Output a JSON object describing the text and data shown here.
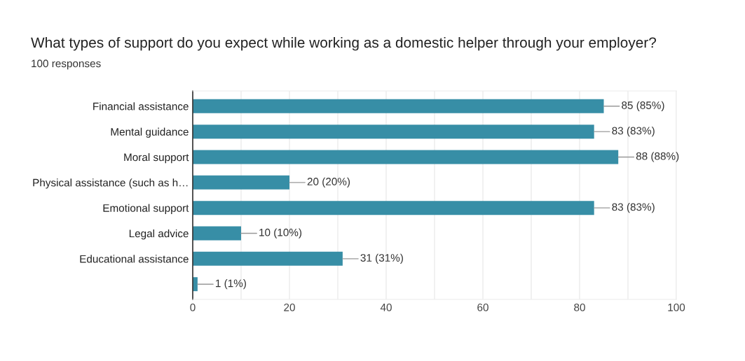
{
  "chart_data": {
    "type": "bar",
    "orientation": "horizontal",
    "title": "What types of support do you expect while working as a domestic helper through your employer?",
    "subtitle": "100 responses",
    "categories": [
      "Financial assistance",
      "Mental guidance",
      "Moral support",
      "Physical assistance (such as h…",
      "Emotional support",
      "Legal advice",
      "Educational assistance",
      null
    ],
    "values": [
      85,
      83,
      88,
      20,
      83,
      10,
      31,
      1
    ],
    "value_labels": [
      "85 (85%)",
      "83 (83%)",
      "88 (88%)",
      "20 (20%)",
      "83 (83%)",
      "10 (10%)",
      "31 (31%)",
      "1 (1%)"
    ],
    "color": "#378ea6",
    "xlim": [
      0,
      100
    ],
    "xticks": [
      0,
      {
        "value": 10,
        "label": null
      },
      20,
      {
        "value": 30,
        "label": null
      },
      40,
      {
        "value": 50,
        "label": null
      },
      60,
      {
        "value": 70,
        "label": null
      },
      80,
      {
        "value": 90,
        "label": null
      },
      100
    ],
    "grid": "x"
  }
}
